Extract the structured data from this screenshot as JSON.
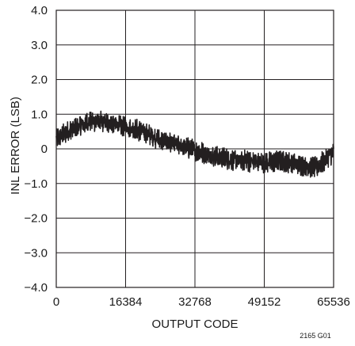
{
  "chart_data": {
    "type": "line",
    "title": "",
    "xlabel": "OUTPUT CODE",
    "ylabel": "INL ERROR (LSB)",
    "xlim": [
      0,
      65536
    ],
    "ylim": [
      -4.0,
      4.0
    ],
    "x_ticks": [
      "0",
      "16384",
      "32768",
      "49152",
      "65536"
    ],
    "x_tick_values": [
      0,
      16384,
      32768,
      49152,
      65536
    ],
    "y_ticks": [
      "4.0",
      "3.0",
      "2.0",
      "1.0",
      "0",
      "−1.0",
      "−2.0",
      "−3.0",
      "−4.0"
    ],
    "y_tick_values": [
      4,
      3,
      2,
      1,
      0,
      -1,
      -2,
      -3,
      -4
    ],
    "grid": true,
    "legend": "none",
    "line_color": "#231f20",
    "series": [
      {
        "x": [
          0,
          4096,
          8192,
          12288,
          16384,
          20480,
          24576,
          28672,
          32768,
          36864,
          40960,
          45056,
          49152,
          53248,
          57344,
          61440,
          65536
        ],
        "y": [
          0.3,
          0.6,
          0.8,
          0.75,
          0.65,
          0.5,
          0.25,
          0.1,
          -0.05,
          -0.2,
          -0.3,
          -0.35,
          -0.4,
          -0.35,
          -0.45,
          -0.55,
          -0.1
        ],
        "noise_amplitude": 0.28
      }
    ],
    "annotation": "2165 G01"
  }
}
